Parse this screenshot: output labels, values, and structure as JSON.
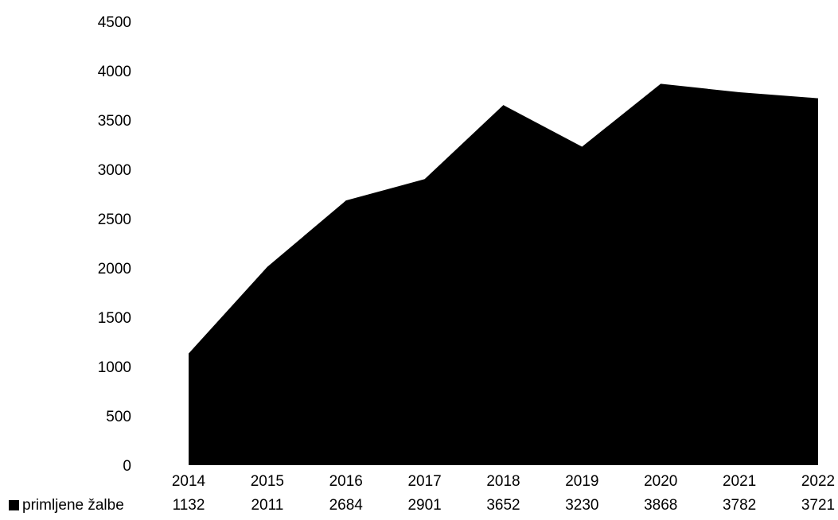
{
  "chart_data": {
    "type": "area",
    "categories": [
      "2014",
      "2015",
      "2016",
      "2017",
      "2018",
      "2019",
      "2020",
      "2021",
      "2022"
    ],
    "series": [
      {
        "name": "primljene žalbe",
        "values": [
          1132,
          2011,
          2684,
          2901,
          3652,
          3230,
          3868,
          3782,
          3721
        ]
      }
    ],
    "y_ticks": [
      "0",
      "500",
      "1000",
      "1500",
      "2000",
      "2500",
      "3000",
      "3500",
      "4000",
      "4500"
    ],
    "ylim": [
      0,
      4500
    ],
    "grid": false,
    "legend": "data-table-left",
    "title": "",
    "xlabel": "",
    "ylabel": "",
    "colors": {
      "area": "#000000",
      "text": "#000000",
      "background": "#ffffff"
    }
  }
}
